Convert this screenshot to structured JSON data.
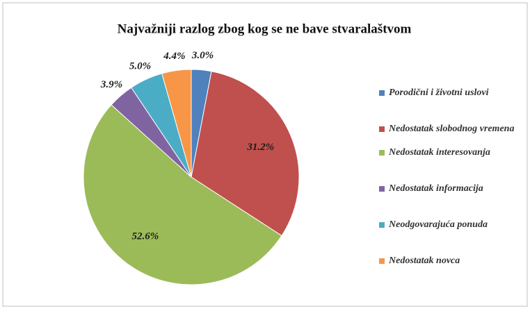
{
  "chart_data": {
    "type": "pie",
    "title": "Najvažniji razlog zbog kog se ne bave stvaralaštvom",
    "categories": [
      "Porodični i životni uslovi",
      "Nedostatak slobodnog vremena",
      "Nedostatak interesovanja",
      "Nedostatak informacija",
      "Neodgovarajuća ponuda",
      "Nedostatak novca"
    ],
    "values": [
      3.0,
      31.2,
      52.6,
      3.9,
      5.0,
      4.4
    ],
    "value_labels": [
      "3.0%",
      "31.2%",
      "52.6%",
      "3.9%",
      "5.0%",
      "4.4%"
    ],
    "colors": [
      "#4f81bd",
      "#c0504d",
      "#9bbb59",
      "#8064a2",
      "#4bacc6",
      "#f79646"
    ],
    "legend": "right"
  }
}
